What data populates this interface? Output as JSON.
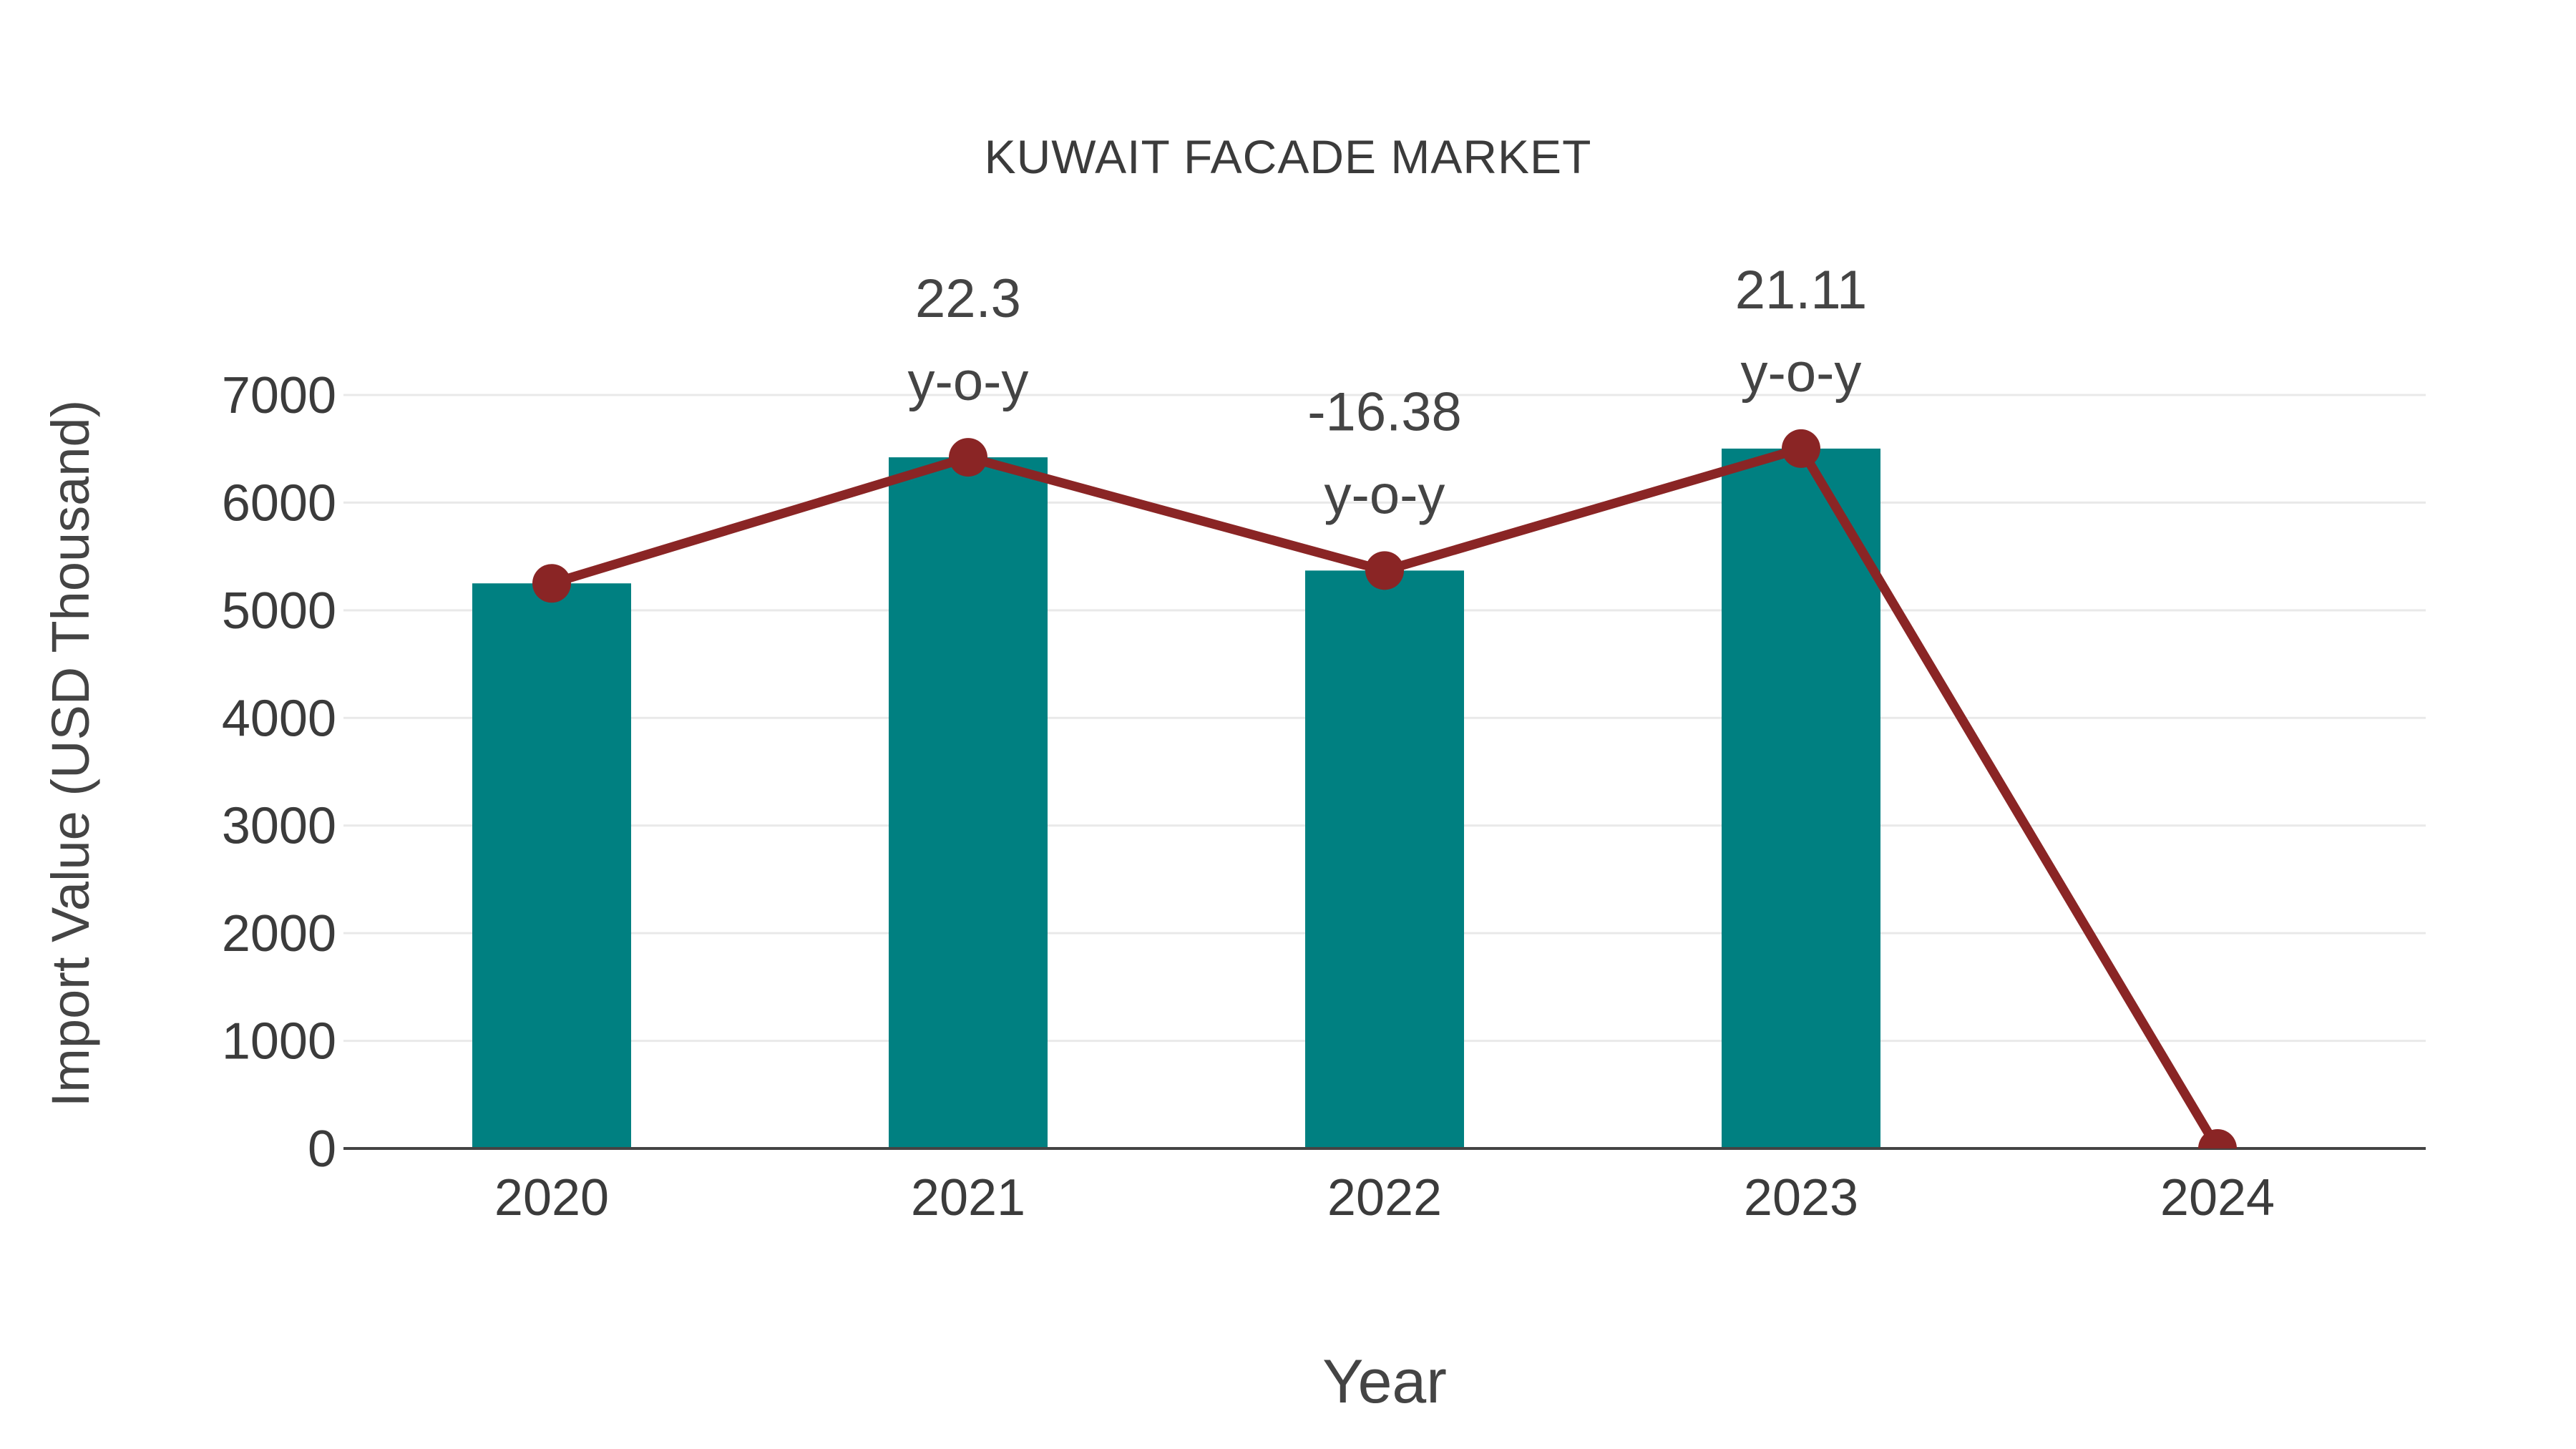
{
  "title": "KUWAIT FACADE MARKET",
  "palette": {
    "bar_teal": "#008081",
    "line_maroon": "#8A2525",
    "gridline_gray": "#e9e9e9",
    "axis_gray": "#444444",
    "text_gray": "#3b3b3b",
    "background": "#ffffff"
  },
  "chart_data": {
    "type": "combo (bar + line)",
    "title": "KUWAIT FACADE MARKET",
    "xlabel": "Year",
    "ylabel": "Import Value (USD Thousand)",
    "categories": [
      "2020",
      "2021",
      "2022",
      "2023",
      "2024"
    ],
    "series": [
      {
        "name": "Import Value bars",
        "type": "bar",
        "color": "#008081",
        "values": [
          5250,
          6421,
          5369,
          6502,
          null
        ]
      },
      {
        "name": "Import Value trend line",
        "type": "line",
        "color": "#8A2525",
        "values": [
          5250,
          6421,
          5369,
          6502,
          0
        ]
      }
    ],
    "annotations": [
      {
        "category": "2021",
        "lines": [
          "22.3",
          "y-o-y"
        ]
      },
      {
        "category": "2022",
        "lines": [
          "-16.38",
          "y-o-y"
        ]
      },
      {
        "category": "2023",
        "lines": [
          "21.11",
          "y-o-y"
        ]
      }
    ],
    "ylim": [
      0,
      7000
    ],
    "yticks": [
      0,
      1000,
      2000,
      3000,
      4000,
      5000,
      6000,
      7000
    ],
    "grid": true,
    "legend": false
  }
}
